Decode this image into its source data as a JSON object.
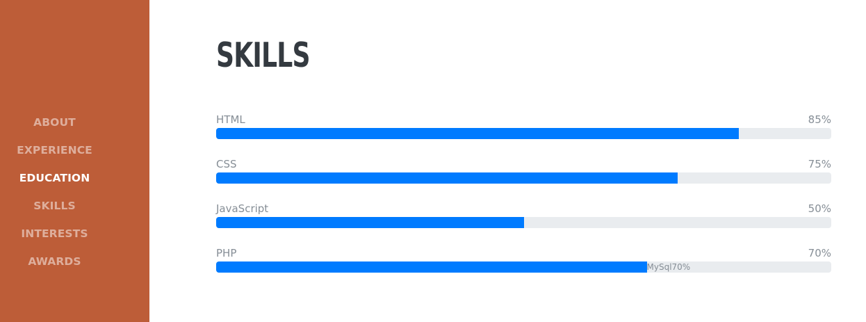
{
  "sidebar": {
    "background": "#bd5d38",
    "items": [
      {
        "label": "About",
        "active": false
      },
      {
        "label": "Experience",
        "active": false
      },
      {
        "label": "Education",
        "active": true
      },
      {
        "label": "Skills",
        "active": false
      },
      {
        "label": "Interests",
        "active": false
      },
      {
        "label": "Awards",
        "active": false
      }
    ]
  },
  "main": {
    "title": "SKILLS",
    "skills": [
      {
        "name": "HTML",
        "percent_label": "85%",
        "level": 85
      },
      {
        "name": "CSS",
        "percent_label": "75%",
        "level": 75
      },
      {
        "name": "JavaScript",
        "percent_label": "50%",
        "level": 50
      },
      {
        "name": "PHP",
        "percent_label": "70%",
        "level": 70,
        "extra_text": "MySql70%"
      }
    ]
  },
  "colors": {
    "accent": "#007bff",
    "track": "#e9ecef",
    "title": "#343a40",
    "muted_text": "#868e96"
  }
}
